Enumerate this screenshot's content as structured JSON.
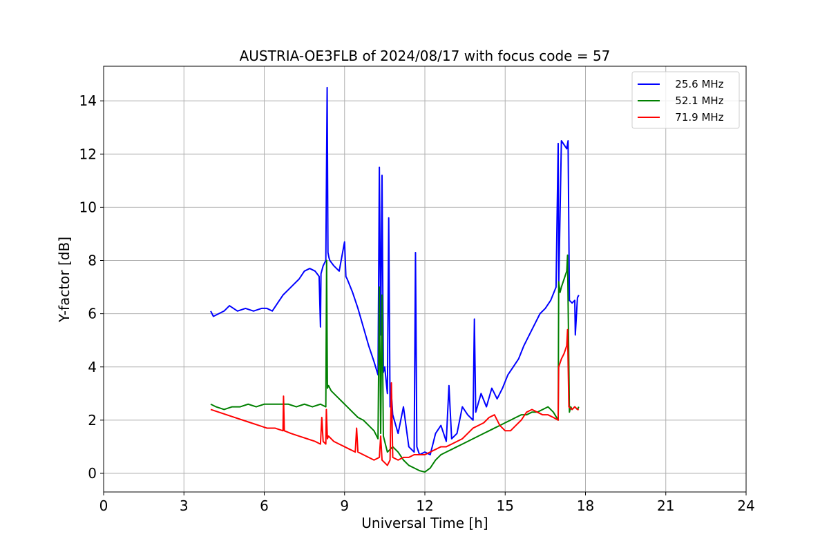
{
  "chart_data": {
    "type": "line",
    "title": "AUSTRIA-OE3FLB of 2024/08/17 with focus code = 57",
    "xlabel": "Universal Time [h]",
    "ylabel": "Y-factor [dB]",
    "xlim": [
      0,
      24
    ],
    "ylim": [
      -0.7,
      15.3
    ],
    "xticks": [
      0,
      3,
      6,
      9,
      12,
      15,
      18,
      21,
      24
    ],
    "xtick_labels": [
      "0",
      "3",
      "6",
      "9",
      "12",
      "15",
      "18",
      "21",
      "24"
    ],
    "yticks": [
      0,
      2,
      4,
      6,
      8,
      10,
      12,
      14
    ],
    "ytick_labels": [
      "0",
      "2",
      "4",
      "6",
      "8",
      "10",
      "12",
      "14"
    ],
    "grid": true,
    "legend_position": "top-right",
    "series": [
      {
        "name": "25.6 MHz",
        "legend_label": "   25.6 MHz",
        "color": "#0000ff",
        "x": [
          4.0,
          4.1,
          4.3,
          4.5,
          4.7,
          5.0,
          5.3,
          5.6,
          5.9,
          6.1,
          6.3,
          6.5,
          6.7,
          6.9,
          7.1,
          7.3,
          7.5,
          7.7,
          7.9,
          8.05,
          8.1,
          8.12,
          8.2,
          8.3,
          8.35,
          8.38,
          8.42,
          8.45,
          8.6,
          8.8,
          9.0,
          9.05,
          9.1,
          9.3,
          9.5,
          9.7,
          9.9,
          10.1,
          10.25,
          10.3,
          10.35,
          10.4,
          10.45,
          10.5,
          10.6,
          10.65,
          10.7,
          10.75,
          10.8,
          11.0,
          11.2,
          11.4,
          11.6,
          11.65,
          11.7,
          11.8,
          12.0,
          12.2,
          12.4,
          12.6,
          12.8,
          12.9,
          13.0,
          13.2,
          13.4,
          13.6,
          13.8,
          13.85,
          13.9,
          14.1,
          14.3,
          14.5,
          14.7,
          14.9,
          15.1,
          15.3,
          15.5,
          15.7,
          15.9,
          16.1,
          16.3,
          16.5,
          16.7,
          16.9,
          16.98,
          17.0,
          17.1,
          17.3,
          17.35,
          17.4,
          17.5,
          17.6,
          17.62,
          17.7,
          17.75
        ],
        "y": [
          6.1,
          5.9,
          6.0,
          6.1,
          6.3,
          6.1,
          6.2,
          6.1,
          6.2,
          6.2,
          6.1,
          6.4,
          6.7,
          6.9,
          7.1,
          7.3,
          7.6,
          7.7,
          7.6,
          7.4,
          5.5,
          7.5,
          7.8,
          8.0,
          14.5,
          8.3,
          8.1,
          8.0,
          7.8,
          7.6,
          8.7,
          7.4,
          7.3,
          6.8,
          6.2,
          5.5,
          4.8,
          4.2,
          3.7,
          11.5,
          5.2,
          11.2,
          3.8,
          4.0,
          3.0,
          9.6,
          2.5,
          3.0,
          2.2,
          1.5,
          2.5,
          1.0,
          0.8,
          8.3,
          1.0,
          0.7,
          0.8,
          0.7,
          1.5,
          1.8,
          1.2,
          3.3,
          1.3,
          1.5,
          2.5,
          2.2,
          2.0,
          5.8,
          2.3,
          3.0,
          2.5,
          3.2,
          2.8,
          3.2,
          3.7,
          4.0,
          4.3,
          4.8,
          5.2,
          5.6,
          6.0,
          6.2,
          6.5,
          7.0,
          12.4,
          7.0,
          12.5,
          12.2,
          12.5,
          6.5,
          6.4,
          6.5,
          5.2,
          6.6,
          6.7
        ]
      },
      {
        "name": "52.1 MHz",
        "legend_label": "   52.1 MHz",
        "color": "#008000",
        "x": [
          4.0,
          4.2,
          4.5,
          4.8,
          5.1,
          5.4,
          5.7,
          6.0,
          6.3,
          6.6,
          6.9,
          7.2,
          7.5,
          7.8,
          8.1,
          8.3,
          8.33,
          8.36,
          8.4,
          8.5,
          8.7,
          8.9,
          9.1,
          9.3,
          9.5,
          9.7,
          9.9,
          10.1,
          10.25,
          10.3,
          10.35,
          10.4,
          10.45,
          10.5,
          10.6,
          10.8,
          11.0,
          11.2,
          11.4,
          11.6,
          11.8,
          12.0,
          12.2,
          12.4,
          12.6,
          12.8,
          13.0,
          13.2,
          13.4,
          13.6,
          13.8,
          14.0,
          14.2,
          14.4,
          14.6,
          14.8,
          15.0,
          15.2,
          15.4,
          15.6,
          15.8,
          16.0,
          16.2,
          16.4,
          16.6,
          16.8,
          16.98,
          17.0,
          17.05,
          17.1,
          17.2,
          17.3,
          17.33,
          17.4,
          17.45,
          17.5,
          17.6,
          17.7,
          17.75
        ],
        "y": [
          2.6,
          2.5,
          2.4,
          2.5,
          2.5,
          2.6,
          2.5,
          2.6,
          2.6,
          2.6,
          2.6,
          2.5,
          2.6,
          2.5,
          2.6,
          2.5,
          8.0,
          3.2,
          3.3,
          3.1,
          2.9,
          2.7,
          2.5,
          2.3,
          2.1,
          2.0,
          1.8,
          1.6,
          1.3,
          7.0,
          1.5,
          6.7,
          1.4,
          1.2,
          0.8,
          1.0,
          0.8,
          0.5,
          0.3,
          0.2,
          0.1,
          0.05,
          0.2,
          0.5,
          0.7,
          0.8,
          0.9,
          1.0,
          1.1,
          1.2,
          1.3,
          1.4,
          1.5,
          1.6,
          1.7,
          1.8,
          1.9,
          2.0,
          2.1,
          2.2,
          2.2,
          2.3,
          2.3,
          2.4,
          2.5,
          2.3,
          2.0,
          7.2,
          6.8,
          7.0,
          7.3,
          7.6,
          8.2,
          2.3,
          2.5,
          2.4,
          2.5,
          2.4,
          2.5
        ]
      },
      {
        "name": "71.9 MHz",
        "legend_label": "   71.9 MHz",
        "color": "#ff0000",
        "x": [
          4.0,
          4.3,
          4.6,
          4.9,
          5.2,
          5.5,
          5.8,
          6.1,
          6.4,
          6.7,
          6.72,
          6.75,
          7.0,
          7.3,
          7.6,
          7.9,
          8.1,
          8.15,
          8.2,
          8.3,
          8.32,
          8.36,
          8.4,
          8.6,
          8.8,
          9.0,
          9.2,
          9.4,
          9.45,
          9.5,
          9.7,
          9.9,
          10.1,
          10.3,
          10.35,
          10.4,
          10.5,
          10.6,
          10.7,
          10.75,
          10.8,
          11.0,
          11.2,
          11.4,
          11.6,
          11.8,
          12.0,
          12.2,
          12.4,
          12.6,
          12.8,
          13.0,
          13.2,
          13.4,
          13.6,
          13.8,
          14.0,
          14.2,
          14.4,
          14.6,
          14.8,
          15.0,
          15.2,
          15.4,
          15.6,
          15.8,
          16.0,
          16.2,
          16.4,
          16.6,
          16.8,
          16.98,
          17.0,
          17.1,
          17.2,
          17.3,
          17.33,
          17.38,
          17.5,
          17.6,
          17.7,
          17.75
        ],
        "y": [
          2.4,
          2.3,
          2.2,
          2.1,
          2.0,
          1.9,
          1.8,
          1.7,
          1.7,
          1.6,
          2.9,
          1.6,
          1.5,
          1.4,
          1.3,
          1.2,
          1.1,
          2.1,
          1.2,
          1.1,
          2.4,
          1.3,
          1.4,
          1.2,
          1.1,
          1.0,
          0.9,
          0.8,
          1.7,
          0.8,
          0.7,
          0.6,
          0.5,
          0.6,
          1.4,
          0.5,
          0.4,
          0.3,
          0.5,
          3.4,
          0.6,
          0.5,
          0.6,
          0.6,
          0.7,
          0.7,
          0.7,
          0.8,
          0.9,
          1.0,
          1.0,
          1.1,
          1.2,
          1.3,
          1.5,
          1.7,
          1.8,
          1.9,
          2.1,
          2.2,
          1.8,
          1.6,
          1.6,
          1.8,
          2.0,
          2.3,
          2.4,
          2.3,
          2.2,
          2.2,
          2.1,
          2.0,
          4.0,
          4.3,
          4.5,
          4.8,
          5.4,
          2.5,
          2.4,
          2.5,
          2.4,
          2.4
        ]
      }
    ]
  }
}
